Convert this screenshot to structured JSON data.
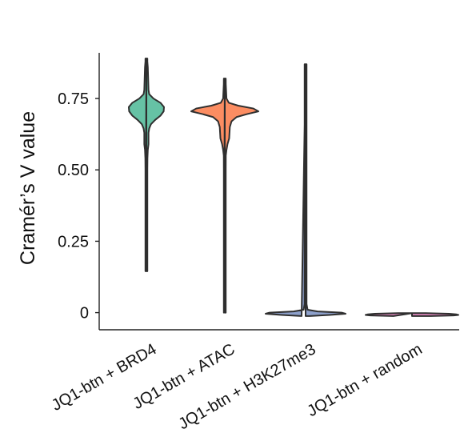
{
  "chart_data": {
    "type": "violin",
    "title": "",
    "xlabel": "",
    "ylabel": "Cramér’s V value",
    "ylim": [
      -0.06,
      0.91
    ],
    "yticks": [
      {
        "value": 0,
        "label": "0"
      },
      {
        "value": 0.25,
        "label": "0.25"
      },
      {
        "value": 0.5,
        "label": "0.50"
      },
      {
        "value": 0.75,
        "label": "0.75"
      }
    ],
    "categories": [
      "JQ1-btn + BRD4",
      "JQ1-btn + ATAC",
      "JQ1-btn + H3K27me3",
      "JQ1-btn + random"
    ],
    "legend": "none",
    "grid": false,
    "series": [
      {
        "category": "JQ1-btn + BRD4",
        "color": "#66c2a5",
        "min": 0.145,
        "max": 0.89,
        "density": [
          [
            0.145,
            0.02
          ],
          [
            0.2,
            0.03
          ],
          [
            0.3,
            0.035
          ],
          [
            0.4,
            0.04
          ],
          [
            0.5,
            0.05
          ],
          [
            0.54,
            0.06
          ],
          [
            0.57,
            0.08
          ],
          [
            0.59,
            0.12
          ],
          [
            0.61,
            0.12
          ],
          [
            0.63,
            0.12
          ],
          [
            0.645,
            0.16
          ],
          [
            0.66,
            0.26
          ],
          [
            0.675,
            0.5
          ],
          [
            0.69,
            0.8
          ],
          [
            0.705,
            0.98
          ],
          [
            0.72,
            1.0
          ],
          [
            0.735,
            0.8
          ],
          [
            0.75,
            0.4
          ],
          [
            0.765,
            0.16
          ],
          [
            0.78,
            0.12
          ],
          [
            0.8,
            0.11
          ],
          [
            0.82,
            0.1
          ],
          [
            0.84,
            0.09
          ],
          [
            0.86,
            0.08
          ],
          [
            0.88,
            0.05
          ],
          [
            0.89,
            0.02
          ]
        ]
      },
      {
        "category": "JQ1-btn + ATAC",
        "color": "#fc8d62",
        "min": 0.0,
        "max": 0.82,
        "density": [
          [
            0.0,
            0.012
          ],
          [
            0.2,
            0.016
          ],
          [
            0.4,
            0.02
          ],
          [
            0.5,
            0.024
          ],
          [
            0.55,
            0.03
          ],
          [
            0.57,
            0.05
          ],
          [
            0.59,
            0.08
          ],
          [
            0.61,
            0.13
          ],
          [
            0.63,
            0.14
          ],
          [
            0.65,
            0.15
          ],
          [
            0.67,
            0.2
          ],
          [
            0.685,
            0.35
          ],
          [
            0.695,
            0.65
          ],
          [
            0.705,
            1.0
          ],
          [
            0.715,
            0.85
          ],
          [
            0.725,
            0.4
          ],
          [
            0.735,
            0.12
          ],
          [
            0.75,
            0.05
          ],
          [
            0.8,
            0.03
          ],
          [
            0.82,
            0.01
          ]
        ]
      },
      {
        "category": "JQ1-btn + H3K27me3",
        "color": "#8da0cb",
        "min": -0.012,
        "max": 0.87,
        "density": [
          [
            -0.012,
            0.1
          ],
          [
            -0.008,
            0.6
          ],
          [
            -0.004,
            1.0
          ],
          [
            0.0,
            0.9
          ],
          [
            0.004,
            0.3
          ],
          [
            0.01,
            0.05
          ],
          [
            0.03,
            0.02
          ],
          [
            0.1,
            0.016
          ],
          [
            0.3,
            0.014
          ],
          [
            0.6,
            0.012
          ],
          [
            0.85,
            0.01
          ],
          [
            0.87,
            0.006
          ]
        ]
      },
      {
        "category": "JQ1-btn + random",
        "color": "#e78ac3",
        "min": -0.012,
        "max": -0.002,
        "density": [
          [
            -0.012,
            0.4
          ],
          [
            -0.01,
            0.9
          ],
          [
            -0.008,
            1.0
          ],
          [
            -0.006,
            0.95
          ],
          [
            -0.004,
            0.8
          ],
          [
            -0.002,
            0.3
          ]
        ]
      }
    ]
  }
}
